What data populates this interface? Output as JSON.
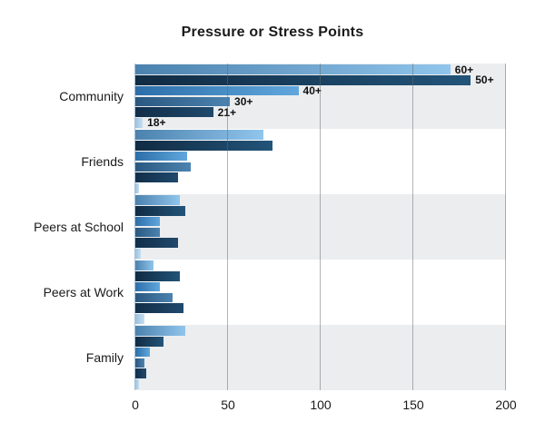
{
  "title": "Pressure or Stress Points",
  "categories": [
    "Community",
    "Friends",
    "Peers at School",
    "Peers at Work",
    "Family"
  ],
  "age_groups": [
    "60+",
    "50+",
    "40+",
    "30+",
    "21+",
    "18+"
  ],
  "series_colors": {
    "60+": {
      "start": "#4b82ae",
      "end": "#90c5ec"
    },
    "50+": {
      "start": "#112b43",
      "end": "#225479"
    },
    "40+": {
      "start": "#2c6ea9",
      "end": "#61a7dd"
    },
    "30+": {
      "start": "#2a5880",
      "end": "#4c83b0"
    },
    "21+": {
      "start": "#112e49",
      "end": "#20496d"
    },
    "18+": {
      "start": "#9dc0dd",
      "end": "#c4def2"
    }
  },
  "band_colors": {
    "odd": "#ebedef",
    "even": "#ffffff"
  },
  "axis": {
    "min": 0,
    "max": 200,
    "tick_labels": [
      "0",
      "50",
      "100",
      "150",
      "200"
    ]
  },
  "chart_data": {
    "type": "bar",
    "orientation": "horizontal",
    "title": "Pressure or Stress Points",
    "categories": [
      "Community",
      "Friends",
      "Peers at School",
      "Peers at Work",
      "Family"
    ],
    "series": [
      {
        "name": "60+",
        "values": [
          170,
          69,
          24,
          10,
          27
        ]
      },
      {
        "name": "50+",
        "values": [
          181,
          74,
          27,
          24,
          15
        ]
      },
      {
        "name": "40+",
        "values": [
          88,
          28,
          13,
          13,
          8
        ]
      },
      {
        "name": "30+",
        "values": [
          51,
          30,
          13,
          20,
          5
        ]
      },
      {
        "name": "21+",
        "values": [
          42,
          23,
          23,
          26,
          6
        ]
      },
      {
        "name": "18+",
        "values": [
          4,
          2,
          3,
          5,
          2
        ]
      }
    ],
    "xlim": [
      0,
      200
    ],
    "x_ticks": [
      0,
      50,
      100,
      150,
      200
    ],
    "grid": "vertical-gridlines",
    "legend": "inline-labels-on-first-category-group",
    "series_order_top_to_bottom": [
      "60+",
      "50+",
      "40+",
      "30+",
      "21+",
      "18+"
    ],
    "background_bands": "alternating gray/white per category, starting gray"
  }
}
